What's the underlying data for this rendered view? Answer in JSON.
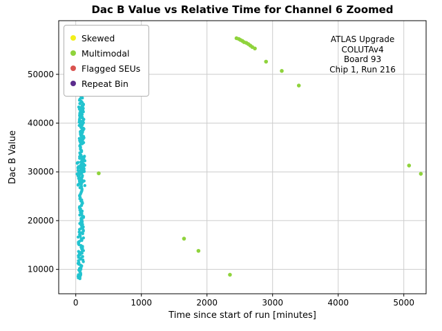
{
  "page": {
    "background": "#ffffff"
  },
  "chart_data": {
    "type": "scatter",
    "title": "Dac B Value vs Relative Time for Channel 6 Zoomed",
    "xlabel": "Time since start of run [minutes]",
    "ylabel": "Dac B Value",
    "xlim": [
      -260,
      5340
    ],
    "ylim": [
      5000,
      61000
    ],
    "xticks": [
      0,
      1000,
      2000,
      3000,
      4000,
      5000
    ],
    "yticks": [
      10000,
      20000,
      30000,
      40000,
      50000
    ],
    "grid": true,
    "grid_color": "#cccccc",
    "spine_color": "#000000",
    "legend": {
      "position": "upper-left",
      "entries": [
        {
          "label": "Skewed",
          "color": "#f2ef1a"
        },
        {
          "label": "Multimodal",
          "color": "#8fd33c"
        },
        {
          "label": "Flagged SEUs",
          "color": "#d9534f"
        },
        {
          "label": "Repeat Bin",
          "color": "#5b2c8d"
        }
      ]
    },
    "annotation": {
      "lines": [
        "ATLAS Upgrade",
        "COLUTAv4",
        "Board 93",
        "Chip 1, Run 216"
      ]
    },
    "series": [
      {
        "name": "normal-dense-band",
        "color": "#22c3cf",
        "marker_r": 2.2,
        "points": [],
        "band_segments": [
          {
            "y0": 53500,
            "y1": 57600,
            "x0": 45,
            "x1": 120,
            "n": 26
          },
          {
            "y0": 44000,
            "y1": 53500,
            "x0": 55,
            "x1": 110,
            "n": 42
          },
          {
            "y0": 36000,
            "y1": 44000,
            "x0": 45,
            "x1": 125,
            "n": 58
          },
          {
            "y0": 33200,
            "y1": 36000,
            "x0": 60,
            "x1": 100,
            "n": 13
          },
          {
            "y0": 27200,
            "y1": 33200,
            "x0": 15,
            "x1": 140,
            "n": 72
          },
          {
            "y0": 21500,
            "y1": 27200,
            "x0": 55,
            "x1": 105,
            "n": 26
          },
          {
            "y0": 8800,
            "y1": 21500,
            "x0": 35,
            "x1": 120,
            "n": 74
          },
          {
            "y0": 8100,
            "y1": 8900,
            "x0": 20,
            "x1": 70,
            "n": 6
          }
        ]
      },
      {
        "name": "Multimodal",
        "color": "#8fd33c",
        "marker_r": 2.8,
        "points": [
          [
            350,
            29700
          ],
          [
            1650,
            16300
          ],
          [
            1870,
            13800
          ],
          [
            2350,
            8900
          ],
          [
            2450,
            57400
          ],
          [
            2485,
            57250
          ],
          [
            2510,
            57050
          ],
          [
            2540,
            56850
          ],
          [
            2565,
            56600
          ],
          [
            2600,
            56450
          ],
          [
            2630,
            56200
          ],
          [
            2660,
            55900
          ],
          [
            2690,
            55600
          ],
          [
            2730,
            55300
          ],
          [
            2900,
            52600
          ],
          [
            3140,
            50700
          ],
          [
            3400,
            47700
          ],
          [
            5080,
            31300
          ],
          [
            5260,
            29600
          ]
        ]
      },
      {
        "name": "Skewed",
        "color": "#f2ef1a",
        "marker_r": 2.8,
        "points": [
          [
            70,
            57600
          ],
          [
            95,
            57300
          ]
        ]
      },
      {
        "name": "Flagged SEUs",
        "color": "#d9534f",
        "marker_r": 2.8,
        "points": []
      },
      {
        "name": "Repeat Bin",
        "color": "#5b2c8d",
        "marker_r": 2.8,
        "points": []
      }
    ]
  }
}
